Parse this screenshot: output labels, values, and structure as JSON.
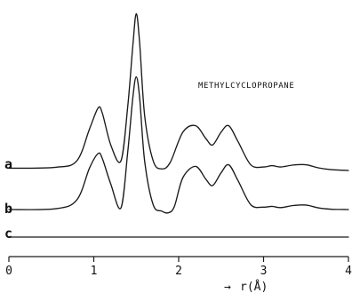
{
  "chart_data": {
    "type": "line",
    "title": "METHYLCYCLOPROPANE",
    "xlabel": "r(Å)",
    "xlabel_arrow": "→",
    "xlim": [
      0,
      4
    ],
    "x_ticks": [
      "0",
      "1",
      "2",
      "3",
      "4"
    ],
    "grid": false,
    "series": [
      {
        "name": "a",
        "x": [
          0.0,
          0.55,
          0.8,
          0.95,
          1.05,
          1.1,
          1.2,
          1.32,
          1.4,
          1.46,
          1.5,
          1.54,
          1.6,
          1.7,
          1.8,
          1.9,
          2.05,
          2.2,
          2.32,
          2.4,
          2.5,
          2.59,
          2.7,
          2.85,
          3.0,
          3.1,
          3.2,
          3.35,
          3.5,
          3.65,
          3.8,
          4.0
        ],
        "y": [
          1.4,
          2.0,
          6.0,
          26.0,
          39.0,
          36.0,
          16.0,
          6.0,
          40.0,
          78.0,
          98.0,
          80.0,
          34.0,
          6.0,
          1.0,
          5.0,
          24.0,
          28.0,
          20.0,
          16.0,
          24.0,
          28.0,
          18.0,
          3.5,
          2.2,
          3.0,
          2.2,
          3.4,
          3.6,
          1.6,
          0.5,
          0.0
        ]
      },
      {
        "name": "b",
        "x": [
          0.0,
          0.55,
          0.8,
          0.95,
          1.05,
          1.1,
          1.2,
          1.32,
          1.4,
          1.46,
          1.5,
          1.54,
          1.6,
          1.7,
          1.8,
          1.88,
          1.95,
          2.05,
          2.2,
          2.32,
          2.4,
          2.5,
          2.59,
          2.7,
          2.85,
          3.0,
          3.1,
          3.2,
          3.35,
          3.5,
          3.65,
          3.8,
          4.0
        ],
        "y": [
          0.0,
          0.5,
          6.0,
          26.0,
          35.0,
          32.0,
          16.0,
          1.0,
          36.0,
          70.0,
          83.0,
          70.0,
          30.0,
          3.0,
          -1.0,
          -2.0,
          2.0,
          20.0,
          27.0,
          19.0,
          15.0,
          23.0,
          28.0,
          18.0,
          3.0,
          1.5,
          2.0,
          1.2,
          2.5,
          2.8,
          1.0,
          0.2,
          0.0
        ]
      },
      {
        "name": "c",
        "x": [
          0.0,
          0.5,
          1.0,
          1.5,
          2.0,
          2.5,
          3.0,
          3.5,
          4.0
        ],
        "y": [
          0.0,
          0.0,
          0.0,
          0.0,
          0.0,
          0.0,
          0.0,
          0.0,
          0.0
        ]
      }
    ]
  }
}
